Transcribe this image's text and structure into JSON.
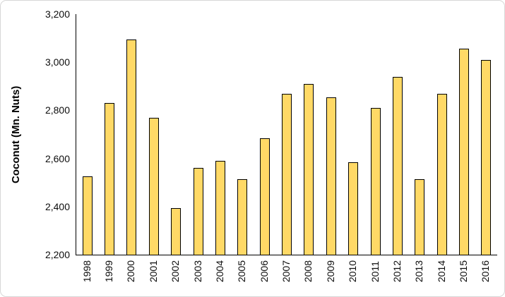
{
  "chart_data": {
    "type": "bar",
    "title": "",
    "xlabel": "",
    "ylabel": "Coconut (Mn. Nuts)",
    "categories": [
      "1998",
      "1999",
      "2000",
      "2001",
      "2002",
      "2003",
      "2004",
      "2005",
      "2006",
      "2007",
      "2008",
      "2009",
      "2010",
      "2011",
      "2012",
      "2013",
      "2014",
      "2015",
      "2016"
    ],
    "values": [
      2525,
      2830,
      3095,
      2770,
      2395,
      2560,
      2590,
      2515,
      2685,
      2870,
      2910,
      2855,
      2585,
      2810,
      2940,
      2515,
      2870,
      3055,
      3010
    ],
    "ylim": [
      2200,
      3200
    ],
    "yticks": [
      2200,
      2400,
      2600,
      2800,
      3000,
      3200
    ],
    "ytick_labels": [
      "2,200",
      "2,400",
      "2,600",
      "2,800",
      "3,000",
      "3,200"
    ],
    "grid": "off",
    "legend": "none",
    "bar_color": "#ffd966",
    "bar_border_color": "#000000",
    "axis_color": "#000000"
  }
}
